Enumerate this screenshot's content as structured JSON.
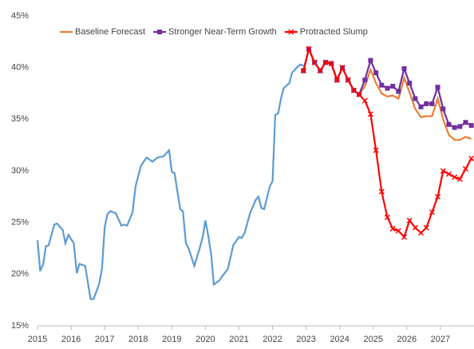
{
  "chart_data": {
    "type": "line",
    "xlim": [
      2015,
      2028
    ],
    "xticks": [
      2015,
      2016,
      2017,
      2018,
      2019,
      2020,
      2021,
      2022,
      2023,
      2024,
      2025,
      2026,
      2027
    ],
    "ylim": [
      15,
      45
    ],
    "yticks": [
      {
        "value": 15,
        "label": "15%"
      },
      {
        "value": 20,
        "label": "20%"
      },
      {
        "value": 25,
        "label": "25%"
      },
      {
        "value": 30,
        "label": "30%"
      },
      {
        "value": 35,
        "label": "35%"
      },
      {
        "value": 40,
        "label": "40%"
      },
      {
        "value": 45,
        "label": "45%"
      }
    ],
    "grid": false,
    "legend": "top",
    "series": [
      {
        "color": "#5b9bd5",
        "marker": "none",
        "x": [
          2015.0,
          2015.08,
          2015.17,
          2015.25,
          2015.33,
          2015.5,
          2015.58,
          2015.75,
          2015.83,
          2015.92,
          2016.08,
          2016.17,
          2016.25,
          2016.42,
          2016.58,
          2016.67,
          2016.83,
          2016.92,
          2017.0,
          2017.08,
          2017.17,
          2017.33,
          2017.5,
          2017.58,
          2017.67,
          2017.83,
          2017.92,
          2018.08,
          2018.25,
          2018.42,
          2018.58,
          2018.75,
          2018.92,
          2019.0,
          2019.08,
          2019.25,
          2019.33,
          2019.42,
          2019.5,
          2019.67,
          2019.83,
          2019.92,
          2020.0,
          2020.08,
          2020.17,
          2020.25,
          2020.42,
          2020.5,
          2020.67,
          2020.83,
          2021.0,
          2021.08,
          2021.17,
          2021.33,
          2021.5,
          2021.58,
          2021.67,
          2021.75,
          2021.92,
          2022.0,
          2022.08,
          2022.17,
          2022.25,
          2022.33,
          2022.5,
          2022.58,
          2022.75,
          2022.83,
          2022.92
        ],
        "values": [
          23.3,
          20.3,
          21,
          22.7,
          22.8,
          24.8,
          24.9,
          24.3,
          23,
          23.8,
          23,
          20.1,
          21,
          20.8,
          17.6,
          17.6,
          19,
          20.5,
          24.5,
          25.8,
          26.1,
          25.9,
          24.7,
          24.8,
          24.7,
          26,
          28.5,
          30.5,
          31.3,
          30.9,
          31.3,
          31.4,
          32,
          29.9,
          29.8,
          26.3,
          26.1,
          23,
          22.5,
          20.8,
          22.5,
          23.6,
          25.2,
          23.8,
          22,
          19,
          19.4,
          19.8,
          20.5,
          22.8,
          23.6,
          23.5,
          24,
          25.9,
          27.2,
          27.5,
          26.4,
          26.3,
          28.5,
          29,
          35.4,
          35.6,
          37,
          38,
          38.5,
          39.5,
          40.1,
          40.3,
          40.2
        ]
      },
      {
        "name": "Baseline Forecast",
        "color": "#ed7d31",
        "marker": "none",
        "x": [
          2022.92,
          2023.08,
          2023.25,
          2023.42,
          2023.58,
          2023.75,
          2023.92,
          2024.08,
          2024.25,
          2024.42,
          2024.58,
          2024.75,
          2024.92,
          2025.08,
          2025.25,
          2025.42,
          2025.58,
          2025.75,
          2025.92,
          2026.08,
          2026.25,
          2026.42,
          2026.58,
          2026.75,
          2026.92,
          2027.08,
          2027.25,
          2027.42,
          2027.58,
          2027.75,
          2027.92
        ],
        "values": [
          39.7,
          41.8,
          40.5,
          39.7,
          40.5,
          40.4,
          38.8,
          40,
          38.8,
          37.8,
          37.4,
          38.2,
          39.8,
          38.5,
          37.5,
          37.2,
          37.3,
          37,
          39,
          37.6,
          36,
          35.2,
          35.3,
          35.3,
          37,
          35,
          33.5,
          33,
          33,
          33.3,
          33.1
        ]
      },
      {
        "name": "Stronger Near-Term Growth",
        "color": "#7030a0",
        "marker": "square",
        "x": [
          2022.92,
          2023.08,
          2023.25,
          2023.42,
          2023.58,
          2023.75,
          2023.92,
          2024.08,
          2024.25,
          2024.42,
          2024.58,
          2024.75,
          2024.92,
          2025.08,
          2025.25,
          2025.42,
          2025.58,
          2025.75,
          2025.92,
          2026.08,
          2026.25,
          2026.42,
          2026.58,
          2026.75,
          2026.92,
          2027.08,
          2027.25,
          2027.42,
          2027.58,
          2027.75,
          2027.92
        ],
        "values": [
          39.7,
          41.8,
          40.5,
          39.7,
          40.5,
          40.4,
          38.8,
          40,
          38.8,
          37.8,
          37.4,
          38.8,
          40.7,
          39.5,
          38.3,
          38,
          38.2,
          37.7,
          39.9,
          38.5,
          37,
          36.2,
          36.5,
          36.5,
          38.1,
          36,
          34.5,
          34.2,
          34.3,
          34.7,
          34.4
        ]
      },
      {
        "name": "Protracted Slump",
        "color": "#ff0000",
        "marker": "x",
        "x": [
          2022.92,
          2023.08,
          2023.25,
          2023.42,
          2023.58,
          2023.75,
          2023.92,
          2024.08,
          2024.25,
          2024.42,
          2024.58,
          2024.75,
          2024.92,
          2025.08,
          2025.25,
          2025.42,
          2025.58,
          2025.75,
          2025.92,
          2026.08,
          2026.25,
          2026.42,
          2026.58,
          2026.75,
          2026.92,
          2027.08,
          2027.25,
          2027.42,
          2027.58,
          2027.75,
          2027.92
        ],
        "values": [
          39.7,
          41.8,
          40.5,
          39.7,
          40.5,
          40.4,
          38.8,
          40,
          38.8,
          37.8,
          37.4,
          36.8,
          35.5,
          32,
          28,
          25.5,
          24.4,
          24.2,
          23.6,
          25.2,
          24.5,
          24,
          24.5,
          26,
          27.5,
          30,
          29.7,
          29.4,
          29.2,
          30.2,
          31.2
        ]
      }
    ]
  }
}
